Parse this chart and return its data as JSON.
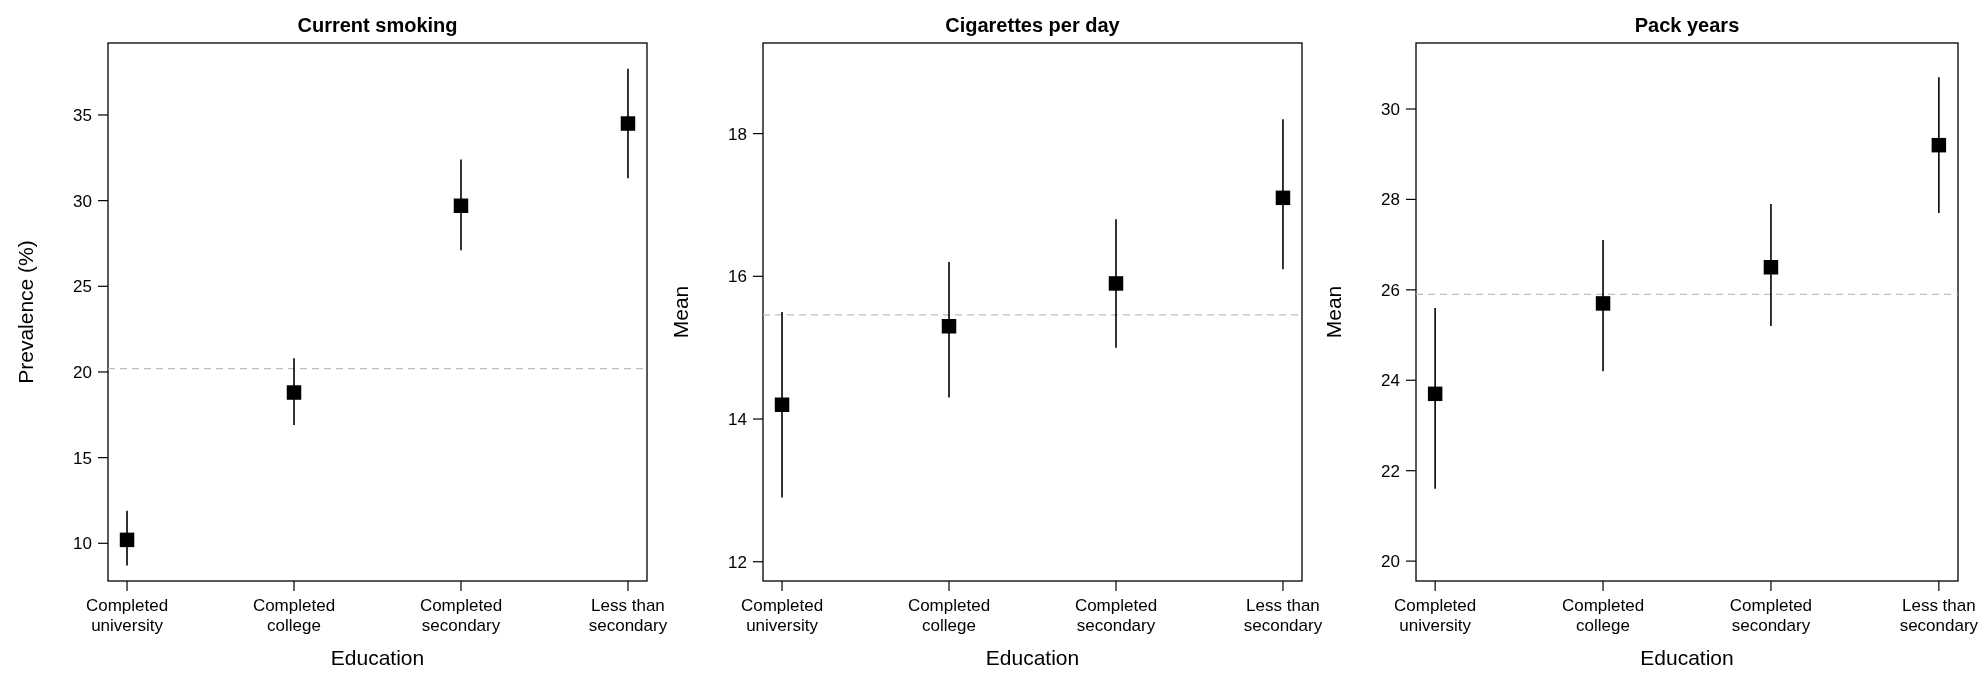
{
  "chart_data": [
    {
      "type": "scatter",
      "title": "Current smoking",
      "xlabel": "Education",
      "ylabel": "Prevalence (%)",
      "categories": [
        "Completed\nuniversity",
        "Completed\ncollege",
        "Completed\nsecondary",
        "Less than\nsecondary"
      ],
      "ylim": [
        7.8,
        39.2
      ],
      "yticks": [
        10,
        15,
        20,
        25,
        30,
        35
      ],
      "marker": "square",
      "series": [
        {
          "color": "#000000",
          "values": [
            10.2,
            18.8,
            29.7,
            34.5
          ],
          "errors": [
            [
              8.7,
              11.9
            ],
            [
              16.9,
              20.8
            ],
            [
              27.1,
              32.4
            ],
            [
              31.3,
              37.7
            ]
          ]
        }
      ],
      "ref_lines": [
        {
          "axis": "y",
          "value": 20.2,
          "color": "#bebebe",
          "line_style": "dashed"
        }
      ]
    },
    {
      "type": "scatter",
      "title": "Cigarettes per day",
      "xlabel": "Education",
      "ylabel": "Mean",
      "categories": [
        "Completed\nuniversity",
        "Completed\ncollege",
        "Completed\nsecondary",
        "Less than\nsecondary"
      ],
      "ylim": [
        11.73,
        19.27
      ],
      "yticks": [
        12,
        14,
        16,
        18
      ],
      "marker": "square",
      "series": [
        {
          "color": "#000000",
          "values": [
            14.2,
            15.3,
            15.9,
            17.1
          ],
          "errors": [
            [
              12.9,
              15.5
            ],
            [
              14.3,
              16.2
            ],
            [
              15.0,
              16.8
            ],
            [
              16.1,
              18.2
            ]
          ]
        }
      ],
      "ref_lines": [
        {
          "axis": "y",
          "value": 15.46,
          "color": "#bebebe",
          "line_style": "dashed"
        }
      ]
    },
    {
      "type": "scatter",
      "title": "Pack years",
      "xlabel": "Education",
      "ylabel": "Mean",
      "categories": [
        "Completed\nuniversity",
        "Completed\ncollege",
        "Completed\nsecondary",
        "Less than\nsecondary"
      ],
      "ylim": [
        19.56,
        31.46
      ],
      "yticks": [
        20,
        22,
        24,
        26,
        28,
        30
      ],
      "marker": "square",
      "series": [
        {
          "color": "#000000",
          "values": [
            23.7,
            25.7,
            26.5,
            29.2
          ],
          "errors": [
            [
              21.6,
              25.6
            ],
            [
              24.2,
              27.1
            ],
            [
              25.2,
              27.9
            ],
            [
              27.7,
              30.7
            ]
          ]
        }
      ],
      "ref_lines": [
        {
          "axis": "y",
          "value": 25.9,
          "color": "#bebebe",
          "line_style": "dashed"
        }
      ]
    }
  ]
}
